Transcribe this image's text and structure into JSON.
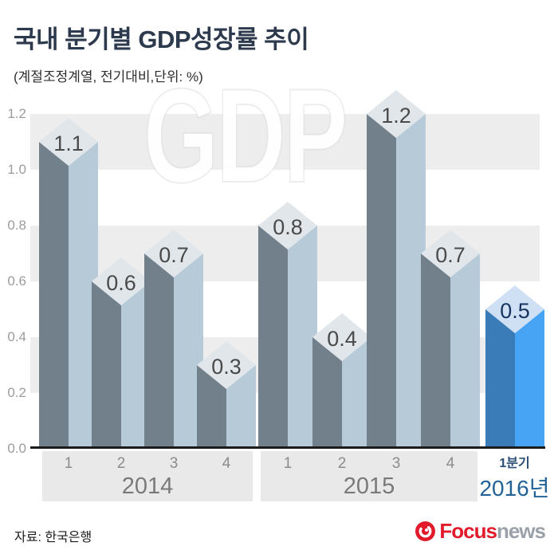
{
  "header": {
    "title": "국내 분기별 GDP성장률 추이",
    "subtitle": "(계절조정계열, 전기대비,단위: %)"
  },
  "watermark": "GDP",
  "chart_data": {
    "type": "bar",
    "title": "국내 분기별 GDP성장률 추이",
    "subtitle": "(계절조정계열, 전기대비,단위: %)",
    "unit": "%",
    "ylim": [
      0.0,
      1.2
    ],
    "yticks": [
      "1.2",
      "1.0",
      "0.8",
      "0.6",
      "0.4",
      "0.2",
      "0.0"
    ],
    "grid": "alternating horizontal bands",
    "groups": [
      {
        "year": "2014",
        "quarters": [
          "1",
          "2",
          "3",
          "4"
        ],
        "values": [
          1.1,
          0.6,
          0.7,
          0.3
        ],
        "highlight": false
      },
      {
        "year": "2015",
        "quarters": [
          "1",
          "2",
          "3",
          "4"
        ],
        "values": [
          0.8,
          0.4,
          1.2,
          0.7
        ],
        "highlight": false
      },
      {
        "year": "2016년",
        "quarters": [
          "1분기"
        ],
        "values": [
          0.5
        ],
        "highlight": true
      }
    ],
    "colors": {
      "bar_left_face": "#72808c",
      "bar_right_face": "#b6cad7",
      "bar_top_face": "#e0e6ea",
      "bar_value_text": "#4a4a4a",
      "highlight_left_face": "#3a7cb8",
      "highlight_right_face": "#47a4f5",
      "highlight_top_face": "#cfe0f5",
      "highlight_value_text": "#17335f",
      "band": "#ededee",
      "axis_line": "#1b1b1b"
    }
  },
  "footer": {
    "source": "자료: 한국은행",
    "logo": {
      "focus": "Focus",
      "news": "news"
    }
  }
}
